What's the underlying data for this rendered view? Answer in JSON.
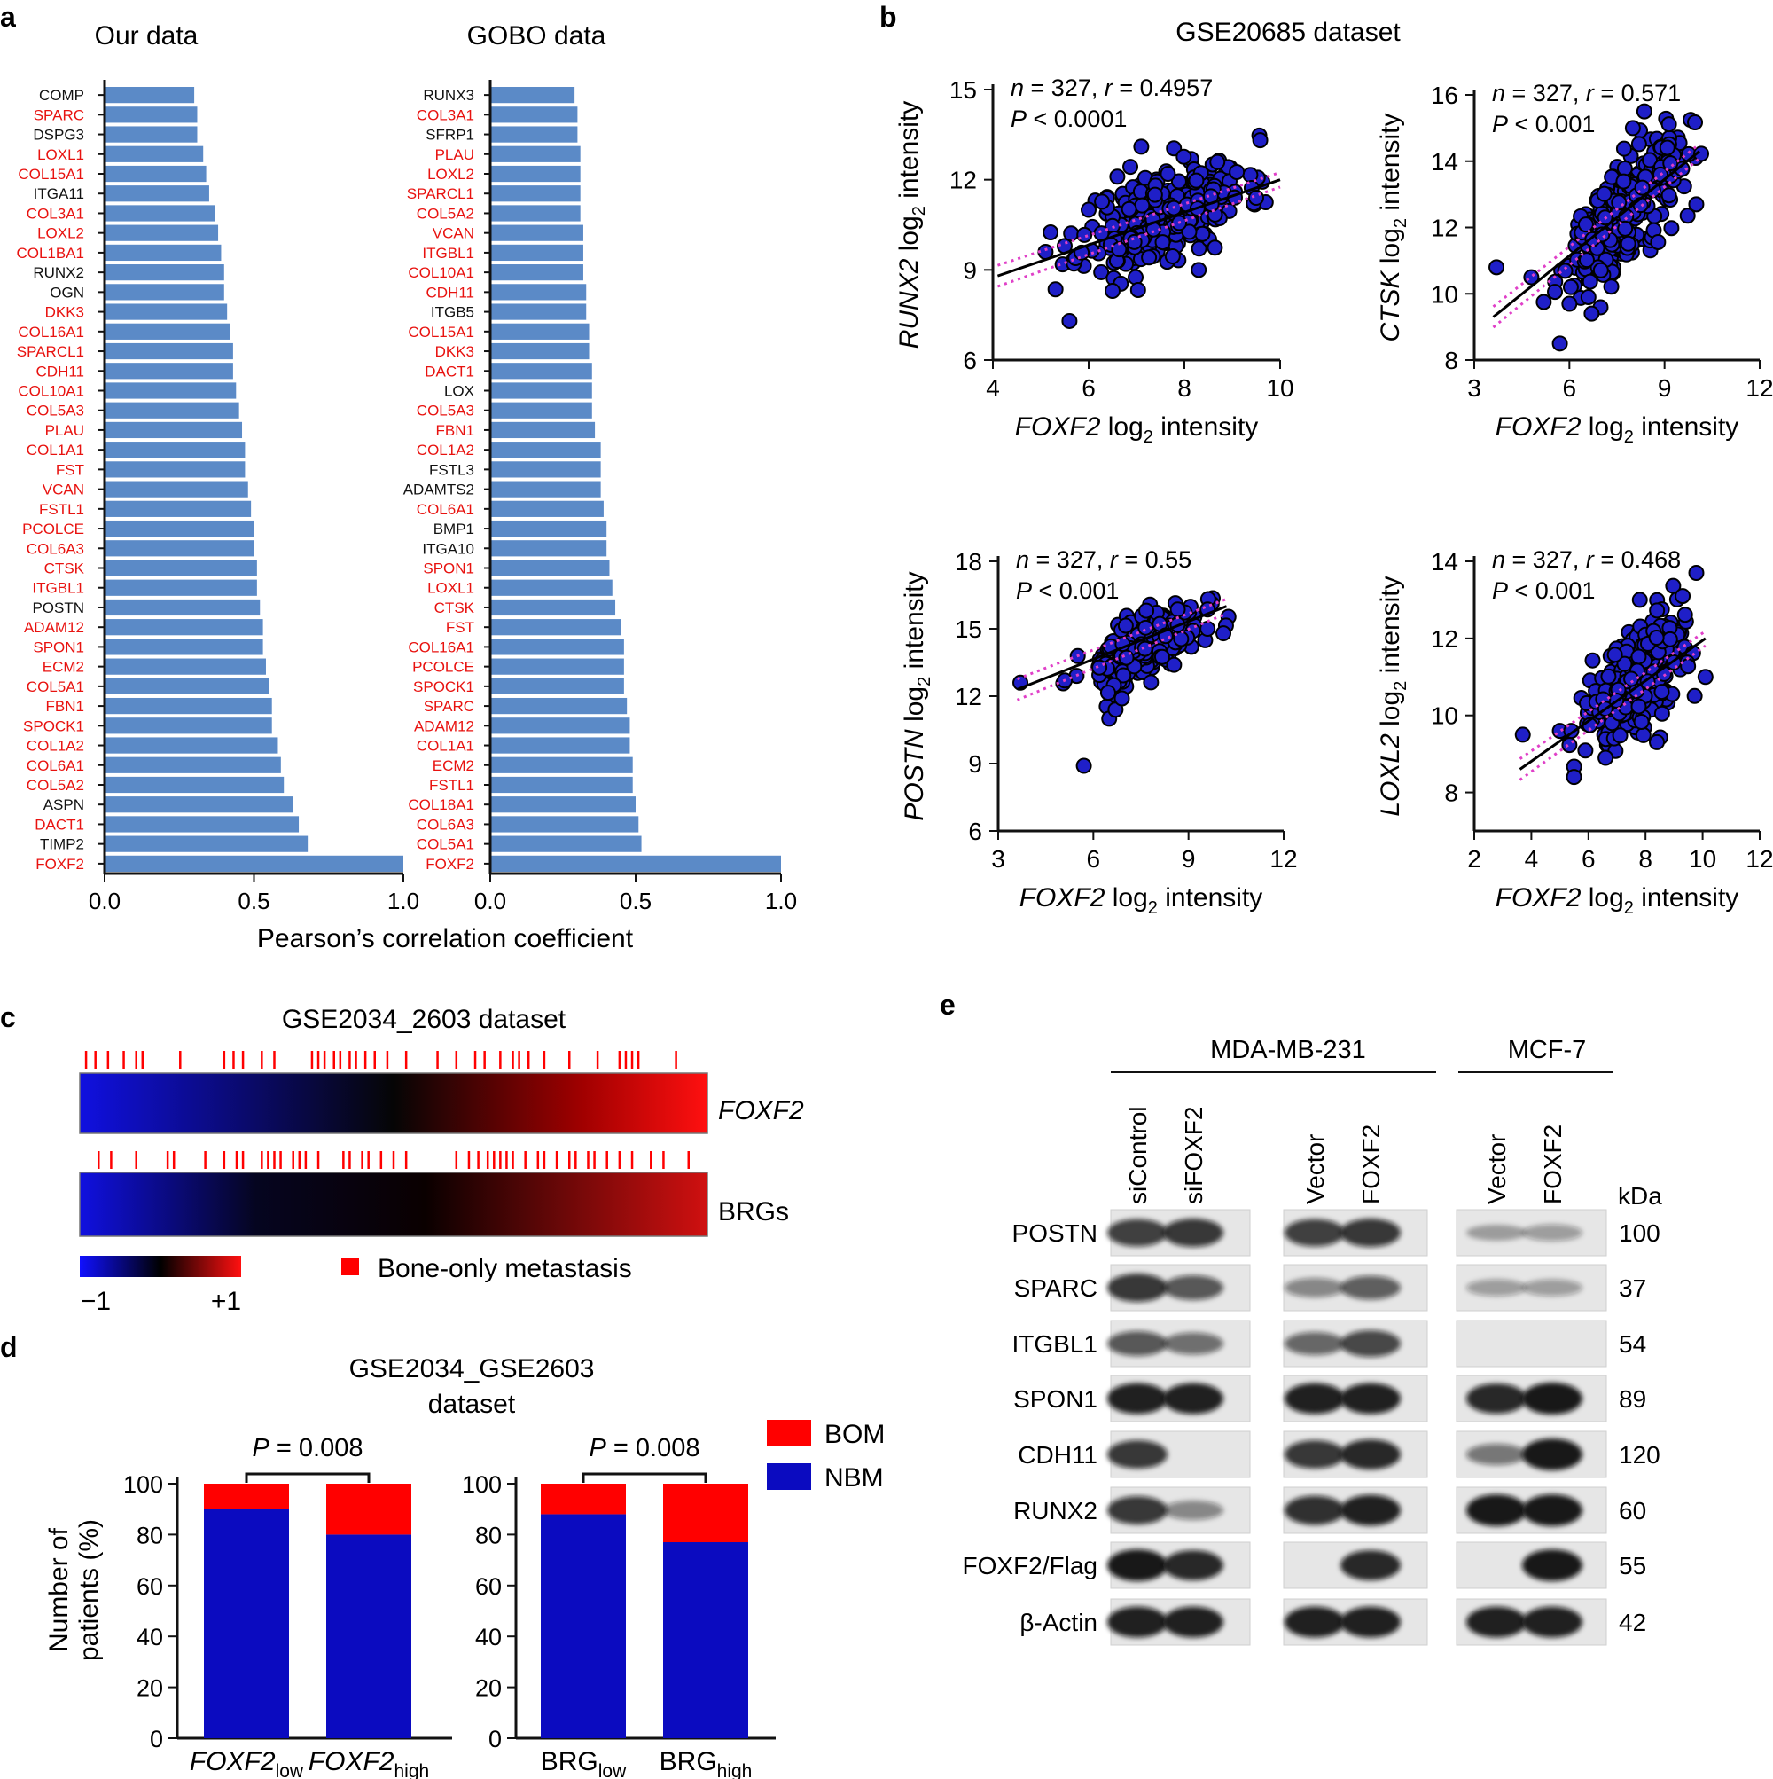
{
  "colors": {
    "bar": "#5b8ac7",
    "red_label": "#e8120f",
    "dot": "#1f1fc8",
    "ci_line": "#e040c8",
    "bom": "#ff0000",
    "nbm": "#0b0bc0"
  },
  "panel_labels": [
    "a",
    "b",
    "c",
    "d",
    "e"
  ],
  "chart_data": [
    {
      "id": "a1",
      "type": "bar",
      "orientation": "horizontal",
      "title": "Our data",
      "xlabel": "Pearson’s correlation coefficient",
      "xlim": [
        0,
        1
      ],
      "xticks": [
        "0.0",
        "0.5",
        "1.0"
      ],
      "categories": [
        "COMP",
        "SPARC",
        "DSPG3",
        "LOXL1",
        "COL15A1",
        "ITGA11",
        "COL3A1",
        "LOXL2",
        "COL1BA1",
        "RUNX2",
        "OGN",
        "DKK3",
        "COL16A1",
        "SPARCL1",
        "CDH11",
        "COL10A1",
        "COL5A3",
        "PLAU",
        "COL1A1",
        "FST",
        "VCAN",
        "FSTL1",
        "PCOLCE",
        "COL6A3",
        "CTSK",
        "ITGBL1",
        "POSTN",
        "ADAM12",
        "SPON1",
        "ECM2",
        "COL5A1",
        "FBN1",
        "SPOCK1",
        "COL1A2",
        "COL6A1",
        "COL5A2",
        "ASPN",
        "DACT1",
        "TIMP2",
        "FOXF2"
      ],
      "label_red": [
        false,
        true,
        false,
        true,
        true,
        false,
        true,
        true,
        true,
        false,
        false,
        true,
        true,
        true,
        true,
        true,
        true,
        true,
        true,
        true,
        true,
        true,
        true,
        true,
        true,
        true,
        false,
        true,
        true,
        true,
        true,
        true,
        true,
        true,
        true,
        true,
        false,
        true,
        false,
        true
      ],
      "values": [
        0.3,
        0.31,
        0.31,
        0.33,
        0.34,
        0.35,
        0.37,
        0.38,
        0.39,
        0.4,
        0.4,
        0.41,
        0.42,
        0.43,
        0.43,
        0.44,
        0.45,
        0.46,
        0.47,
        0.47,
        0.48,
        0.49,
        0.5,
        0.5,
        0.51,
        0.51,
        0.52,
        0.53,
        0.53,
        0.54,
        0.55,
        0.56,
        0.56,
        0.58,
        0.59,
        0.6,
        0.63,
        0.65,
        0.68,
        1.0
      ]
    },
    {
      "id": "a2",
      "type": "bar",
      "orientation": "horizontal",
      "title": "GOBO data",
      "xlim": [
        0,
        1
      ],
      "xticks": [
        "0.0",
        "0.5",
        "1.0"
      ],
      "categories": [
        "RUNX3",
        "COL3A1",
        "SFRP1",
        "PLAU",
        "LOXL2",
        "SPARCL1",
        "COL5A2",
        "VCAN",
        "ITGBL1",
        "COL10A1",
        "CDH11",
        "ITGB5",
        "COL15A1",
        "DKK3",
        "DACT1",
        "LOX",
        "COL5A3",
        "FBN1",
        "COL1A2",
        "FSTL3",
        "ADAMTS2",
        "COL6A1",
        "BMP1",
        "ITGA10",
        "SPON1",
        "LOXL1",
        "CTSK",
        "FST",
        "COL16A1",
        "PCOLCE",
        "SPOCK1",
        "SPARC",
        "ADAM12",
        "COL1A1",
        "ECM2",
        "FSTL1",
        "COL18A1",
        "COL6A3",
        "COL5A1",
        "FOXF2"
      ],
      "label_red": [
        false,
        true,
        false,
        true,
        true,
        true,
        true,
        true,
        true,
        true,
        true,
        false,
        true,
        true,
        true,
        false,
        true,
        true,
        true,
        false,
        false,
        true,
        false,
        false,
        true,
        true,
        true,
        true,
        true,
        true,
        true,
        true,
        true,
        true,
        true,
        true,
        true,
        true,
        true,
        true
      ],
      "values": [
        0.29,
        0.3,
        0.3,
        0.31,
        0.31,
        0.31,
        0.31,
        0.32,
        0.32,
        0.32,
        0.33,
        0.33,
        0.34,
        0.34,
        0.35,
        0.35,
        0.35,
        0.36,
        0.38,
        0.38,
        0.38,
        0.39,
        0.4,
        0.4,
        0.41,
        0.42,
        0.43,
        0.45,
        0.46,
        0.46,
        0.46,
        0.47,
        0.48,
        0.48,
        0.49,
        0.49,
        0.5,
        0.51,
        0.52,
        1.0
      ]
    },
    {
      "id": "b1",
      "type": "scatter",
      "title": "GSE20685 dataset",
      "xlabel_gene": "FOXF2",
      "ylabel_gene": "RUNX2",
      "axis_suffix": "log",
      "axis_sub": "2",
      "axis_tail": "intensity",
      "xlim": [
        4,
        10
      ],
      "ylim": [
        6,
        15
      ],
      "xticks": [
        4,
        6,
        8,
        10
      ],
      "yticks": [
        6,
        9,
        12,
        15
      ],
      "stat_n": "n",
      "stat_n_value": " = 327, ",
      "stat_r": "r",
      "stat_r_value": " = 0.4957",
      "stat_p": "P",
      "stat_p_value": " < 0.0001",
      "center": [
        7.6,
        10.9
      ],
      "spread": [
        0.85,
        1.0
      ],
      "slope": 0.55,
      "fit": [
        [
          4.1,
          8.8
        ],
        [
          10.0,
          12.0
        ]
      ],
      "outliers": [
        [
          5.1,
          9.6
        ],
        [
          5.6,
          7.3
        ],
        [
          6.0,
          11.0
        ],
        [
          6.6,
          12.1
        ],
        [
          7.1,
          13.1
        ],
        [
          9.5,
          11.4
        ],
        [
          8.3,
          9.0
        ],
        [
          6.5,
          8.3
        ]
      ]
    },
    {
      "id": "b2",
      "type": "scatter",
      "xlabel_gene": "FOXF2",
      "ylabel_gene": "CTSK",
      "axis_suffix": "log",
      "axis_sub": "2",
      "axis_tail": "intensity",
      "xlim": [
        3,
        12
      ],
      "ylim": [
        8,
        16
      ],
      "xticks": [
        3,
        6,
        9,
        12
      ],
      "yticks": [
        8,
        10,
        12,
        14,
        16
      ],
      "stat_n": "n",
      "stat_n_value": " = 327, ",
      "stat_r": "r",
      "stat_r_value": " = 0.571",
      "stat_p": "P",
      "stat_p_value": " < 0.001",
      "center": [
        7.6,
        12.4
      ],
      "spread": [
        0.9,
        1.0
      ],
      "slope": 0.9,
      "fit": [
        [
          3.6,
          9.3
        ],
        [
          10.1,
          14.3
        ]
      ],
      "outliers": [
        [
          3.7,
          10.8
        ],
        [
          4.8,
          10.5
        ],
        [
          5.7,
          8.5
        ],
        [
          6.0,
          9.7
        ],
        [
          6.6,
          9.9
        ],
        [
          6.7,
          9.4
        ],
        [
          8.0,
          15.0
        ],
        [
          10.0,
          12.7
        ]
      ]
    },
    {
      "id": "b3",
      "type": "scatter",
      "xlabel_gene": "FOXF2",
      "ylabel_gene": "POSTN",
      "axis_suffix": "log",
      "axis_sub": "2",
      "axis_tail": "intensity",
      "xlim": [
        3,
        12
      ],
      "ylim": [
        6,
        18
      ],
      "xticks": [
        3,
        6,
        9,
        12
      ],
      "yticks": [
        6,
        9,
        12,
        15,
        18
      ],
      "stat_n": "n",
      "stat_n_value": " = 327, ",
      "stat_r": "r",
      "stat_r_value": " = 0.55",
      "stat_p": "P",
      "stat_p_value": " < 0.001",
      "center": [
        7.7,
        14.2
      ],
      "spread": [
        0.8,
        0.8
      ],
      "slope": 0.6,
      "fit": [
        [
          3.6,
          12.3
        ],
        [
          10.2,
          16.0
        ]
      ],
      "outliers": [
        [
          3.7,
          12.6
        ],
        [
          5.1,
          12.7
        ],
        [
          5.7,
          8.9
        ],
        [
          6.5,
          11.0
        ],
        [
          6.7,
          11.4
        ],
        [
          6.9,
          11.9
        ],
        [
          9.6,
          15.0
        ],
        [
          10.1,
          14.8
        ]
      ]
    },
    {
      "id": "b4",
      "type": "scatter",
      "xlabel_gene": "FOXF2",
      "ylabel_gene": "LOXL2",
      "axis_suffix": "log",
      "axis_sub": "2",
      "axis_tail": "intensity",
      "xlim": [
        2,
        12
      ],
      "ylim": [
        7,
        14
      ],
      "xticks": [
        2,
        4,
        6,
        8,
        10,
        12
      ],
      "yticks": [
        8,
        10,
        12,
        14
      ],
      "stat_n": "n",
      "stat_n_value": " = 327, ",
      "stat_r": "r",
      "stat_r_value": " = 0.468",
      "stat_p": "P",
      "stat_p_value": " < 0.001",
      "center": [
        7.7,
        10.9
      ],
      "spread": [
        0.85,
        0.95
      ],
      "slope": 0.55,
      "fit": [
        [
          3.6,
          8.6
        ],
        [
          10.1,
          12.0
        ]
      ],
      "outliers": [
        [
          3.7,
          9.5
        ],
        [
          5.0,
          9.6
        ],
        [
          5.4,
          9.6
        ],
        [
          7.8,
          13.0
        ],
        [
          9.3,
          13.1
        ],
        [
          10.1,
          11.0
        ],
        [
          6.6,
          8.9
        ]
      ]
    },
    {
      "id": "c",
      "type": "heatmap",
      "title": "GSE2034_2603 dataset",
      "rows": [
        {
          "label": "FOXF2",
          "italic": true,
          "metastasis_ticks": [
            0.01,
            0.025,
            0.045,
            0.07,
            0.09,
            0.1,
            0.16,
            0.23,
            0.245,
            0.26,
            0.29,
            0.31,
            0.37,
            0.38,
            0.39,
            0.405,
            0.415,
            0.43,
            0.44,
            0.455,
            0.47,
            0.49,
            0.52,
            0.57,
            0.6,
            0.63,
            0.645,
            0.67,
            0.69,
            0.7,
            0.715,
            0.74,
            0.78,
            0.825,
            0.86,
            0.87,
            0.88,
            0.89,
            0.95
          ]
        },
        {
          "label": "BRGs",
          "italic": false,
          "metastasis_ticks": [
            0.03,
            0.05,
            0.09,
            0.14,
            0.15,
            0.2,
            0.23,
            0.25,
            0.26,
            0.29,
            0.3,
            0.31,
            0.32,
            0.34,
            0.35,
            0.36,
            0.38,
            0.42,
            0.43,
            0.45,
            0.46,
            0.48,
            0.5,
            0.52,
            0.6,
            0.62,
            0.635,
            0.65,
            0.66,
            0.67,
            0.68,
            0.69,
            0.71,
            0.73,
            0.74,
            0.76,
            0.78,
            0.79,
            0.81,
            0.82,
            0.84,
            0.86,
            0.88,
            0.91,
            0.93,
            0.97
          ]
        }
      ],
      "scale_min": "−1",
      "scale_max": "+1",
      "legend": "Bone-only metastasis"
    },
    {
      "id": "d",
      "type": "bar",
      "stacked": true,
      "title_line1": "GSE2034_GSE2603",
      "title_line2": "dataset",
      "ylabel_line1": "Number of",
      "ylabel_line2": "patients (%)",
      "ylim": [
        0,
        100
      ],
      "yticks": [
        0,
        20,
        40,
        60,
        80,
        100
      ],
      "legend": [
        "BOM",
        "NBM"
      ],
      "groups": [
        {
          "p_label": "P",
          "p_value": " = 0.008",
          "bars": [
            {
              "name": "FOXF2",
              "sub": "low",
              "italic": true,
              "nbm": 90,
              "bom": 10
            },
            {
              "name": "FOXF2",
              "sub": "high",
              "italic": true,
              "nbm": 80,
              "bom": 20
            }
          ]
        },
        {
          "p_label": "P",
          "p_value": " = 0.008",
          "bars": [
            {
              "name": "BRG",
              "sub": "low",
              "italic": false,
              "nbm": 88,
              "bom": 12
            },
            {
              "name": "BRG",
              "sub": "high",
              "italic": false,
              "nbm": 77,
              "bom": 23
            }
          ]
        }
      ]
    }
  ],
  "western": {
    "group1": "MDA-MB-231",
    "group2": "MCF-7",
    "lanes": [
      "siControl",
      "siFOXF2",
      "Vector",
      "FOXF2",
      "Vector",
      "FOXF2"
    ],
    "kda_label": "kDa",
    "rows": [
      {
        "protein": "POSTN",
        "kda": "100"
      },
      {
        "protein": "SPARC",
        "kda": "37"
      },
      {
        "protein": "ITGBL1",
        "kda": "54"
      },
      {
        "protein": "SPON1",
        "kda": "89"
      },
      {
        "protein": "CDH11",
        "kda": "120"
      },
      {
        "protein": "RUNX2",
        "kda": "60"
      },
      {
        "protein": "FOXF2/Flag",
        "kda": "55"
      },
      {
        "protein": "β-Actin",
        "kda": "42"
      }
    ],
    "band_intensity": [
      [
        0.75,
        0.8,
        0.75,
        0.8,
        0.1,
        0.15
      ],
      [
        0.8,
        0.6,
        0.3,
        0.55,
        0.15,
        0.15
      ],
      [
        0.6,
        0.45,
        0.5,
        0.7,
        0.0,
        0.0
      ],
      [
        0.95,
        0.95,
        0.95,
        0.95,
        0.9,
        1.0
      ],
      [
        0.8,
        0.0,
        0.8,
        0.9,
        0.4,
        1.0
      ],
      [
        0.8,
        0.3,
        0.85,
        0.95,
        1.0,
        1.0
      ],
      [
        1.0,
        0.9,
        0.0,
        0.9,
        0.0,
        1.0
      ],
      [
        0.95,
        0.95,
        0.95,
        0.95,
        0.95,
        0.95
      ]
    ]
  }
}
